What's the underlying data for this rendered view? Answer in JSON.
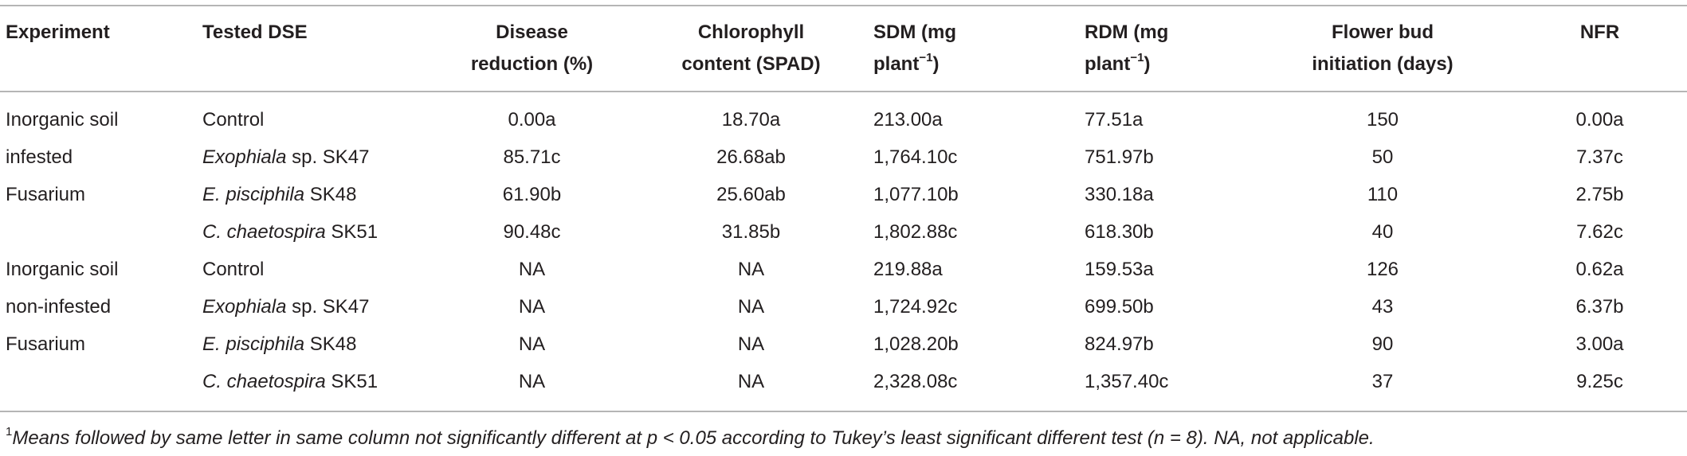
{
  "table": {
    "header": [
      [
        [
          "Experiment"
        ]
      ],
      [
        [
          "Tested DSE"
        ]
      ],
      [
        [
          "Disease"
        ],
        [
          "reduction (%)"
        ]
      ],
      [
        [
          "Chlorophyll"
        ],
        [
          "content (SPAD)"
        ]
      ],
      [
        [
          "SDM (mg"
        ],
        [
          "plant",
          {
            "sup": "−1"
          },
          ")"
        ]
      ],
      [
        [
          "RDM (mg"
        ],
        [
          "plant",
          {
            "sup": "−1"
          },
          ")"
        ]
      ],
      [
        [
          "Flower bud"
        ],
        [
          "initiation (days)"
        ]
      ],
      [
        [
          "NFR"
        ]
      ]
    ],
    "groups": [
      {
        "experiment": [
          "Inorganic soil",
          "infested",
          "Fusarium"
        ],
        "rows": [
          {
            "dse": [
              "Control"
            ],
            "values": [
              "0.00a",
              "18.70a",
              "213.00a",
              "77.51a",
              "150",
              "0.00a"
            ]
          },
          {
            "dse": [
              {
                "italic": "Exophiala"
              },
              " sp. SK47"
            ],
            "values": [
              "85.71c",
              "26.68ab",
              "1,764.10c",
              "751.97b",
              "50",
              "7.37c"
            ]
          },
          {
            "dse": [
              {
                "italic": "E. pisciphila"
              },
              " SK48"
            ],
            "values": [
              "61.90b",
              "25.60ab",
              "1,077.10b",
              "330.18a",
              "110",
              "2.75b"
            ]
          },
          {
            "dse": [
              {
                "italic": "C. chaetospira"
              },
              " SK51"
            ],
            "values": [
              "90.48c",
              "31.85b",
              "1,802.88c",
              "618.30b",
              "40",
              "7.62c"
            ]
          }
        ]
      },
      {
        "experiment": [
          "Inorganic soil",
          "non-infested",
          "Fusarium"
        ],
        "rows": [
          {
            "dse": [
              "Control"
            ],
            "values": [
              "NA",
              "NA",
              "219.88a",
              "159.53a",
              "126",
              "0.62a"
            ]
          },
          {
            "dse": [
              {
                "italic": "Exophiala"
              },
              " sp. SK47"
            ],
            "values": [
              "NA",
              "NA",
              "1,724.92c",
              "699.50b",
              "43",
              "6.37b"
            ]
          },
          {
            "dse": [
              {
                "italic": "E. pisciphila"
              },
              " SK48"
            ],
            "values": [
              "NA",
              "NA",
              "1,028.20b",
              "824.97b",
              "90",
              "3.00a"
            ]
          },
          {
            "dse": [
              {
                "italic": "C. chaetospira"
              },
              " SK51"
            ],
            "values": [
              "NA",
              "NA",
              "2,328.08c",
              "1,357.40c",
              "37",
              "9.25c"
            ]
          }
        ]
      }
    ]
  },
  "footnote": {
    "marker": "1",
    "text": "Means followed by same letter in same column not significantly different at p < 0.05 according to Tukey’s least significant different test (n = 8). NA, not applicable."
  }
}
